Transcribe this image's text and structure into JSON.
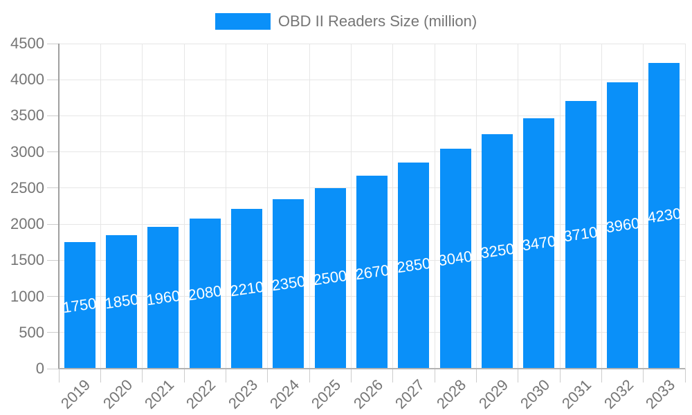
{
  "chart_data": {
    "type": "bar",
    "title": "OBD II Readers Size (million)",
    "categories": [
      "2019",
      "2020",
      "2021",
      "2022",
      "2023",
      "2024",
      "2025",
      "2026",
      "2027",
      "2028",
      "2029",
      "2030",
      "2031",
      "2032",
      "2033"
    ],
    "series": [
      {
        "name": "OBD II Readers Size (million)",
        "values": [
          1750,
          1850,
          1960,
          2080,
          2210,
          2350,
          2500,
          2670,
          2850,
          3040,
          3250,
          3470,
          3710,
          3960,
          4230
        ]
      }
    ],
    "xlabel": "",
    "ylabel": "",
    "ylim": [
      0,
      4500
    ],
    "yticks": [
      0,
      500,
      1000,
      1500,
      2000,
      2500,
      3000,
      3500,
      4000,
      4500
    ],
    "grid": true,
    "legend_position": "top",
    "bar_value_labels_visible": true,
    "x_tick_label_rotation_deg": -45,
    "bar_value_label_rotation_deg": -8,
    "style": {
      "bar_color": "#0a90f9",
      "axis_text_color": "#757575",
      "grid_color": "#e6e6e6",
      "tick_color": "#cccccc",
      "axis_line_color": "#a0a0a0",
      "baseline_color": "#b3b3b3",
      "value_label_color": "#ffffff",
      "background_color": "#ffffff"
    }
  }
}
